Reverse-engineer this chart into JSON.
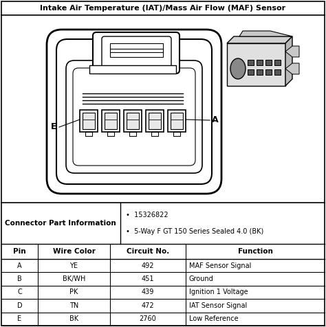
{
  "title": "Intake Air Temperature (IAT)/Mass Air Flow (MAF) Sensor",
  "connector_part_info_label": "Connector Part Information",
  "part_info_bullets": [
    "15326822",
    "5-Way F GT 150 Series Sealed 4.0 (BK)"
  ],
  "table_headers": [
    "Pin",
    "Wire Color",
    "Circuit No.",
    "Function"
  ],
  "table_rows": [
    [
      "A",
      "YE",
      "492",
      "MAF Sensor Signal"
    ],
    [
      "B",
      "BK/WH",
      "451",
      "Ground"
    ],
    [
      "C",
      "PK",
      "439",
      "Ignition 1 Voltage"
    ],
    [
      "D",
      "TN",
      "472",
      "IAT Sensor Signal"
    ],
    [
      "E",
      "BK",
      "2760",
      "Low Reference"
    ]
  ],
  "bg_color": "#ffffff",
  "border_color": "#000000",
  "text_color": "#000000",
  "label_E": "E",
  "label_A": "A",
  "fig_width": 4.74,
  "fig_height": 4.76,
  "dpi": 100
}
